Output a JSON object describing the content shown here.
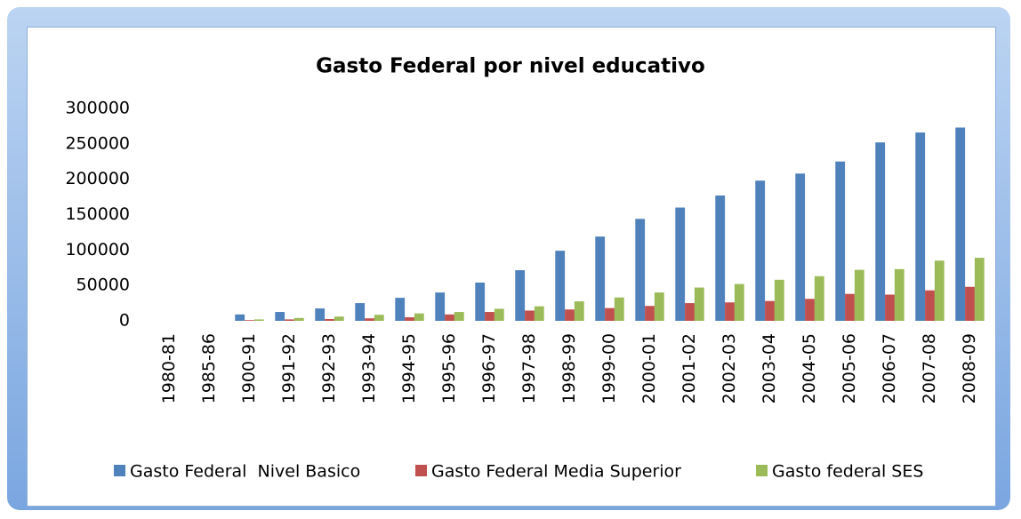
{
  "chart_data": {
    "type": "bar",
    "title": "Gasto Federal por nivel educativo",
    "categories": [
      "1980-81",
      "1985-86",
      "1900-91",
      "1991-92",
      "1992-93",
      "1993-94",
      "1994-95",
      "1995-96",
      "1996-97",
      "1997-98",
      "1998-99",
      "1999-00",
      "2000-01",
      "2001-02",
      "2002-03",
      "2003-04",
      "2004-05",
      "2005-06",
      "2006-07",
      "2007-08",
      "2008-09"
    ],
    "series": [
      {
        "name": "Gasto Federal  Nivel Basico",
        "color": "#4f81bd",
        "values": [
          0,
          0,
          9000,
          12500,
          17500,
          25000,
          32500,
          40000,
          54000,
          71500,
          99000,
          119000,
          144000,
          160000,
          177000,
          198000,
          208000,
          225000,
          252000,
          266000,
          273000
        ]
      },
      {
        "name": "Gasto Federal Media Superior",
        "color": "#c0504d",
        "values": [
          0,
          0,
          1000,
          2000,
          2500,
          3500,
          5000,
          9000,
          12500,
          14500,
          16000,
          18000,
          21000,
          25000,
          26000,
          28000,
          31000,
          38000,
          37000,
          43000,
          48000
        ]
      },
      {
        "name": "Gasto federal SES",
        "color": "#9bbb59",
        "values": [
          0,
          0,
          2000,
          4000,
          6000,
          8500,
          10500,
          12500,
          17000,
          20500,
          27500,
          33000,
          40000,
          47000,
          52000,
          58000,
          63000,
          72000,
          73000,
          85000,
          89000
        ]
      }
    ],
    "ylim": [
      0,
      300000
    ],
    "yticks": [
      0,
      50000,
      100000,
      150000,
      200000,
      250000,
      300000
    ],
    "legend": "bottom"
  }
}
